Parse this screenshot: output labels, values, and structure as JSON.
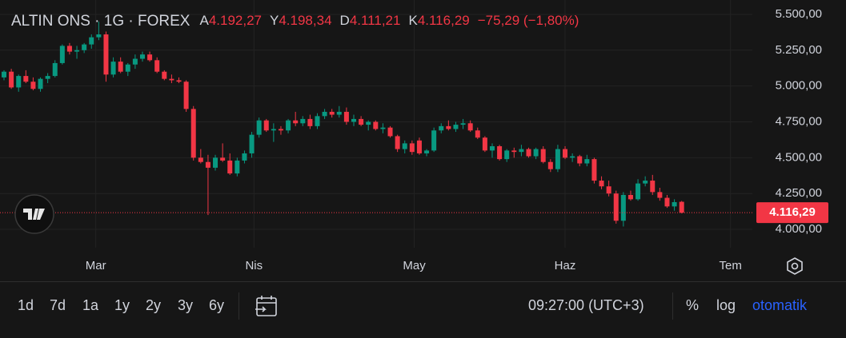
{
  "chart_data": {
    "type": "candlestick",
    "legend": {
      "symbol": "ALTIN ONS · 1G · FOREX",
      "fields": [
        {
          "key": "A",
          "value": "4.192,27"
        },
        {
          "key": "Y",
          "value": "4.198,34"
        },
        {
          "key": "D",
          "value": "4.111,21"
        },
        {
          "key": "K",
          "value": "4.116,29"
        }
      ],
      "change": "−75,29 (−1,80%)"
    },
    "last_label": "4.116,29",
    "up_color": "#089981",
    "down_color": "#f23645",
    "open": [
      5060,
      5100,
      4990,
      5070,
      5030,
      4980,
      5050,
      5070,
      5160,
      5280,
      5240,
      5250,
      5290,
      5340,
      5360,
      5080,
      5170,
      5100,
      5150,
      5190,
      5220,
      5180,
      5100,
      5050,
      5040,
      5030,
      4840,
      4500,
      4470,
      4430,
      4500,
      4480,
      4390,
      4480,
      4530,
      4660,
      4760,
      4690,
      4700,
      4690,
      4760,
      4740,
      4770,
      4720,
      4790,
      4820,
      4800,
      4820,
      4750,
      4770,
      4730,
      4750,
      4700,
      4710,
      4650,
      4560,
      4600,
      4620,
      4530,
      4550,
      4690,
      4720,
      4700,
      4730,
      4740,
      4690,
      4640,
      4550,
      4580,
      4490,
      4550,
      4540,
      4560,
      4510,
      4560,
      4470,
      4420,
      4560,
      4500,
      4510,
      4460,
      4490,
      4340,
      4300,
      4250,
      4060,
      4240,
      4210,
      4320,
      4340,
      4260,
      4220,
      4160,
      4192.27
    ],
    "high": [
      5110,
      5120,
      5080,
      5110,
      5060,
      5060,
      5090,
      5180,
      5290,
      5300,
      5280,
      5300,
      5360,
      5450,
      5380,
      5200,
      5200,
      5160,
      5220,
      5240,
      5240,
      5200,
      5110,
      5080,
      5060,
      5040,
      4860,
      4560,
      4520,
      4520,
      4600,
      4530,
      4500,
      4550,
      4680,
      4780,
      4770,
      4740,
      4720,
      4770,
      4820,
      4790,
      4800,
      4810,
      4840,
      4840,
      4860,
      4850,
      4800,
      4790,
      4760,
      4760,
      4740,
      4720,
      4660,
      4620,
      4620,
      4640,
      4560,
      4710,
      4740,
      4760,
      4750,
      4770,
      4760,
      4710,
      4650,
      4600,
      4590,
      4560,
      4570,
      4590,
      4570,
      4570,
      4580,
      4490,
      4590,
      4580,
      4530,
      4520,
      4520,
      4500,
      4370,
      4340,
      4270,
      4260,
      4270,
      4350,
      4370,
      4380,
      4290,
      4240,
      4210,
      4198.34
    ],
    "low": [
      5040,
      4980,
      4960,
      5020,
      4970,
      4960,
      5020,
      5060,
      5150,
      5220,
      5190,
      5230,
      5260,
      5320,
      5030,
      5060,
      5090,
      5070,
      5120,
      5170,
      5170,
      5090,
      5040,
      5020,
      5020,
      4820,
      4480,
      4460,
      4100,
      4410,
      4470,
      4380,
      4370,
      4460,
      4500,
      4640,
      4680,
      4610,
      4660,
      4670,
      4720,
      4720,
      4700,
      4700,
      4770,
      4780,
      4780,
      4730,
      4720,
      4720,
      4690,
      4690,
      4670,
      4640,
      4540,
      4530,
      4520,
      4520,
      4510,
      4540,
      4670,
      4690,
      4680,
      4700,
      4680,
      4630,
      4540,
      4500,
      4480,
      4470,
      4500,
      4510,
      4500,
      4490,
      4460,
      4400,
      4400,
      4490,
      4470,
      4440,
      4440,
      4320,
      4280,
      4230,
      4040,
      4020,
      4200,
      4200,
      4300,
      4240,
      4200,
      4150,
      4130,
      4111.21
    ],
    "close": [
      5100,
      4990,
      5070,
      5030,
      4980,
      5050,
      5070,
      5160,
      5280,
      5240,
      5250,
      5290,
      5340,
      5360,
      5080,
      5170,
      5100,
      5150,
      5190,
      5220,
      5180,
      5100,
      5050,
      5040,
      5030,
      4840,
      4500,
      4470,
      4430,
      4500,
      4480,
      4390,
      4480,
      4530,
      4660,
      4760,
      4690,
      4700,
      4690,
      4760,
      4740,
      4770,
      4720,
      4790,
      4820,
      4800,
      4820,
      4750,
      4770,
      4730,
      4750,
      4700,
      4710,
      4650,
      4560,
      4600,
      4540,
      4530,
      4550,
      4690,
      4720,
      4700,
      4730,
      4740,
      4690,
      4640,
      4550,
      4580,
      4490,
      4550,
      4540,
      4560,
      4510,
      4560,
      4470,
      4420,
      4560,
      4500,
      4510,
      4460,
      4490,
      4340,
      4300,
      4250,
      4060,
      4240,
      4210,
      4320,
      4340,
      4260,
      4220,
      4160,
      4190,
      4116.29
    ],
    "xlim": [
      -0.55,
      102.7
    ],
    "xticks": [
      {
        "value": 12.6,
        "label": "Mar"
      },
      {
        "value": 34.3,
        "label": "Nis"
      },
      {
        "value": 56.3,
        "label": "May"
      },
      {
        "value": 77,
        "label": "Haz"
      },
      {
        "value": 99.7,
        "label": "Tem"
      }
    ],
    "ylim": [
      3872,
      5600
    ],
    "yticks": [
      {
        "value": 4000,
        "label": "4.000,00"
      },
      {
        "value": 4250,
        "label": "4.250,00"
      },
      {
        "value": 4500,
        "label": "4.500,00"
      },
      {
        "value": 4750,
        "label": "4.750,00"
      },
      {
        "value": 5000,
        "label": "5.000,00"
      },
      {
        "value": 5250,
        "label": "5.250,00"
      },
      {
        "value": 5500,
        "label": "5.500,00"
      }
    ],
    "grid": true
  },
  "toolbar": {
    "ranges": [
      "1d",
      "7d",
      "1a",
      "1y",
      "2y",
      "3y",
      "6y"
    ],
    "time": "09:27:00 (UTC+3)",
    "percent": "%",
    "log": "log",
    "auto": "otomatik"
  }
}
